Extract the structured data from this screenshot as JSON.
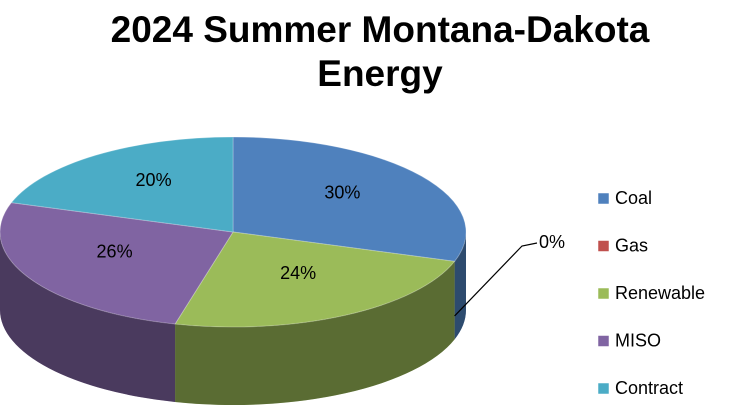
{
  "chart_data": {
    "type": "pie",
    "title": "2024 Summer Montana-Dakota Energy",
    "categories": [
      "Coal",
      "Gas",
      "Renewable",
      "MISO",
      "Contract"
    ],
    "values": [
      30,
      0,
      24,
      26,
      20
    ],
    "value_labels": [
      "30%",
      "0%",
      "24%",
      "26%",
      "20%"
    ],
    "colors": [
      "#4f81bd",
      "#c0504d",
      "#9bbb59",
      "#8064a2",
      "#4bacc6"
    ],
    "legend": "right"
  }
}
